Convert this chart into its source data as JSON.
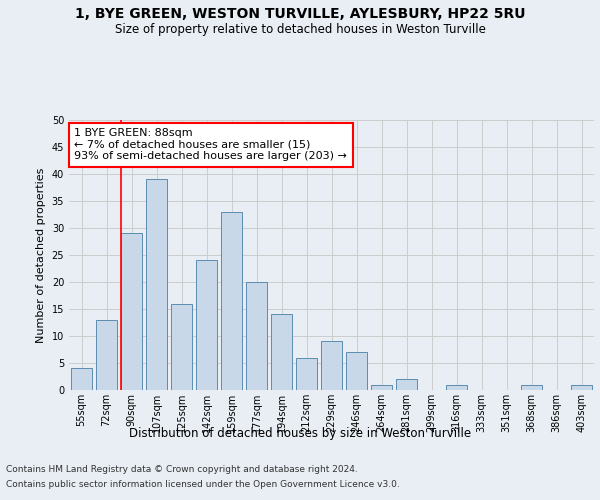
{
  "title_line1": "1, BYE GREEN, WESTON TURVILLE, AYLESBURY, HP22 5RU",
  "title_line2": "Size of property relative to detached houses in Weston Turville",
  "xlabel": "Distribution of detached houses by size in Weston Turville",
  "ylabel": "Number of detached properties",
  "footer_line1": "Contains HM Land Registry data © Crown copyright and database right 2024.",
  "footer_line2": "Contains public sector information licensed under the Open Government Licence v3.0.",
  "categories": [
    "55sqm",
    "72sqm",
    "90sqm",
    "107sqm",
    "125sqm",
    "142sqm",
    "159sqm",
    "177sqm",
    "194sqm",
    "212sqm",
    "229sqm",
    "246sqm",
    "264sqm",
    "281sqm",
    "299sqm",
    "316sqm",
    "333sqm",
    "351sqm",
    "368sqm",
    "386sqm",
    "403sqm"
  ],
  "values": [
    4,
    13,
    29,
    39,
    16,
    24,
    33,
    20,
    14,
    6,
    9,
    7,
    1,
    2,
    0,
    1,
    0,
    0,
    1,
    0,
    1
  ],
  "bar_color": "#c8d8e8",
  "bar_edge_color": "#5b8db0",
  "grid_color": "#cccccc",
  "vline_color": "red",
  "annotation_text": "1 BYE GREEN: 88sqm\n← 7% of detached houses are smaller (15)\n93% of semi-detached houses are larger (203) →",
  "annotation_box_color": "white",
  "annotation_box_edge": "red",
  "ylim": [
    0,
    50
  ],
  "yticks": [
    0,
    5,
    10,
    15,
    20,
    25,
    30,
    35,
    40,
    45,
    50
  ],
  "background_color": "#e8eef4",
  "plot_bg_color": "#e8eef4",
  "title_fontsize": 10,
  "subtitle_fontsize": 8.5,
  "ylabel_fontsize": 8,
  "xlabel_fontsize": 8.5,
  "tick_fontsize": 7,
  "footer_fontsize": 6.5,
  "annotation_fontsize": 8
}
